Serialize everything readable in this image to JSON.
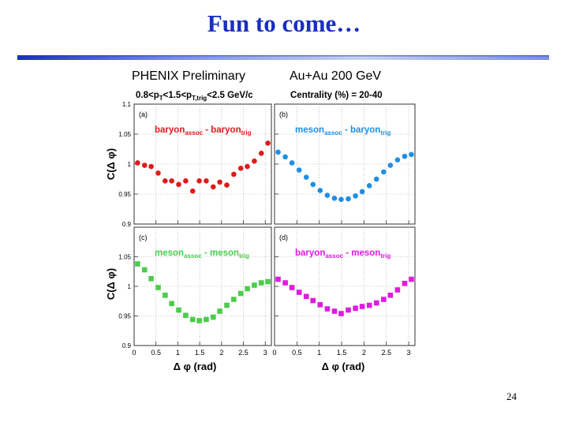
{
  "slide": {
    "title": "Fun to come…",
    "label_left": "PHENIX Preliminary",
    "label_right": "Au+Au 200 GeV",
    "page_number": "24"
  },
  "colors": {
    "title": "#1a2fbf",
    "baryon_baryon": "#e01a1a",
    "meson_baryon": "#1e8fe6",
    "meson_meson": "#4ccc4c",
    "baryon_meson": "#e01ae0"
  },
  "chart_data": {
    "header_left": {
      "pre": "0.8<p",
      "sub1": "T",
      "mid1": "<1.5<p",
      "sub2": "T,trig",
      "post": "<2.5 GeV/c"
    },
    "header_right": "Centrality (%) = 20-40",
    "xlabel": "Δ φ (rad)",
    "ylabel": "C(Δ φ)",
    "x_ticks": [
      "0",
      "0.5",
      "1",
      "1.5",
      "2",
      "2.5",
      "3"
    ],
    "top_y_ticks": [
      "1.1",
      "1.05",
      "1",
      "0.95",
      "0.9"
    ],
    "bottom_y_ticks": [
      "1.05",
      "1",
      "0.95",
      "0.9"
    ],
    "xlim": [
      0,
      3.14
    ],
    "top_ylim": [
      0.9,
      1.1
    ],
    "bottom_ylim": [
      0.9,
      1.1
    ],
    "panels": [
      {
        "id": "a",
        "letter": "(a)",
        "type": "scatter",
        "marker": "circle",
        "color": "#e01a1a",
        "label": {
          "p1": "baryon",
          "s1": "assoc",
          "mid": " - baryon",
          "s2": "trig"
        },
        "x": [
          0.08,
          0.24,
          0.39,
          0.55,
          0.71,
          0.86,
          1.02,
          1.18,
          1.34,
          1.49,
          1.65,
          1.81,
          1.96,
          2.12,
          2.28,
          2.44,
          2.59,
          2.75,
          2.91,
          3.06
        ],
        "y": [
          1.002,
          0.998,
          0.996,
          0.985,
          0.972,
          0.972,
          0.966,
          0.972,
          0.955,
          0.972,
          0.972,
          0.962,
          0.97,
          0.965,
          0.983,
          0.993,
          0.996,
          1.005,
          1.018,
          1.035
        ],
        "err": [
          0.003,
          0.003,
          0.003,
          0.004,
          0.004,
          0.004,
          0.005,
          0.005,
          0.005,
          0.005,
          0.005,
          0.005,
          0.005,
          0.005,
          0.004,
          0.004,
          0.004,
          0.003,
          0.003,
          0.003
        ]
      },
      {
        "id": "b",
        "letter": "(b)",
        "type": "scatter",
        "marker": "circle",
        "color": "#1e8fe6",
        "label": {
          "p1": "meson",
          "s1": "assoc",
          "mid": " - baryon",
          "s2": "trig"
        },
        "x": [
          0.08,
          0.24,
          0.39,
          0.55,
          0.71,
          0.86,
          1.02,
          1.18,
          1.34,
          1.49,
          1.65,
          1.81,
          1.96,
          2.12,
          2.28,
          2.44,
          2.59,
          2.75,
          2.91,
          3.06
        ],
        "y": [
          1.02,
          1.012,
          1.002,
          0.99,
          0.978,
          0.966,
          0.956,
          0.948,
          0.943,
          0.941,
          0.942,
          0.947,
          0.954,
          0.964,
          0.975,
          0.987,
          0.998,
          1.007,
          1.013,
          1.016
        ],
        "err": [
          0.002,
          0.002,
          0.002,
          0.002,
          0.002,
          0.002,
          0.002,
          0.002,
          0.002,
          0.002,
          0.002,
          0.002,
          0.002,
          0.002,
          0.002,
          0.002,
          0.002,
          0.002,
          0.002,
          0.002
        ]
      },
      {
        "id": "c",
        "letter": "(c)",
        "type": "scatter",
        "marker": "square",
        "color": "#4ccc4c",
        "label": {
          "p1": "meson",
          "s1": "assoc",
          "mid": " - meson",
          "s2": "trig"
        },
        "x": [
          0.08,
          0.24,
          0.39,
          0.55,
          0.71,
          0.86,
          1.02,
          1.18,
          1.34,
          1.49,
          1.65,
          1.81,
          1.96,
          2.12,
          2.28,
          2.44,
          2.59,
          2.75,
          2.91,
          3.06
        ],
        "y": [
          1.038,
          1.028,
          1.013,
          0.998,
          0.985,
          0.971,
          0.96,
          0.951,
          0.944,
          0.942,
          0.944,
          0.948,
          0.958,
          0.968,
          0.978,
          0.988,
          0.996,
          1.002,
          1.006,
          1.008
        ],
        "err": [
          0.002,
          0.002,
          0.002,
          0.002,
          0.002,
          0.002,
          0.002,
          0.002,
          0.002,
          0.002,
          0.002,
          0.002,
          0.002,
          0.002,
          0.002,
          0.002,
          0.002,
          0.002,
          0.002,
          0.002
        ]
      },
      {
        "id": "d",
        "letter": "(d)",
        "type": "scatter",
        "marker": "square",
        "color": "#e01ae0",
        "label": {
          "p1": "baryon",
          "s1": "assoc",
          "mid": " - meson",
          "s2": "trig"
        },
        "x": [
          0.08,
          0.24,
          0.39,
          0.55,
          0.71,
          0.86,
          1.02,
          1.18,
          1.34,
          1.49,
          1.65,
          1.81,
          1.96,
          2.12,
          2.28,
          2.44,
          2.59,
          2.75,
          2.91,
          3.06
        ],
        "y": [
          1.012,
          1.006,
          0.998,
          0.99,
          0.983,
          0.976,
          0.969,
          0.962,
          0.958,
          0.954,
          0.96,
          0.963,
          0.966,
          0.968,
          0.972,
          0.978,
          0.985,
          0.994,
          1.005,
          1.012
        ],
        "err": [
          0.002,
          0.002,
          0.002,
          0.002,
          0.002,
          0.003,
          0.003,
          0.003,
          0.005,
          0.006,
          0.004,
          0.003,
          0.003,
          0.003,
          0.002,
          0.002,
          0.002,
          0.002,
          0.002,
          0.002
        ]
      }
    ]
  }
}
